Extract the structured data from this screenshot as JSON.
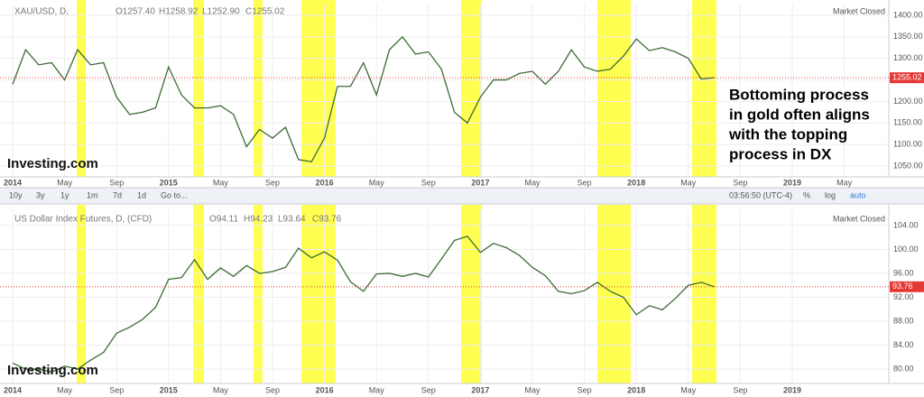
{
  "chart_data": [
    {
      "type": "line",
      "title": "XAU/USD, D,",
      "ohlc": [
        "O1257.40",
        "H1258.92",
        "L1252.90",
        "C1255.02"
      ],
      "status": "Market Closed",
      "logo": "Investing.com",
      "categories": [
        "2014",
        null,
        null,
        null,
        "May",
        null,
        null,
        null,
        "Sep",
        null,
        null,
        null,
        "2015",
        null,
        null,
        null,
        "May",
        null,
        null,
        null,
        "Sep",
        null,
        null,
        null,
        "2016",
        null,
        null,
        null,
        "May",
        null,
        null,
        null,
        "Sep",
        null,
        null,
        null,
        "2017",
        null,
        null,
        null,
        "May",
        null,
        null,
        null,
        "Sep",
        null,
        null,
        null,
        "2018",
        null,
        null,
        null,
        "May",
        null,
        null,
        null,
        "Sep",
        null,
        null,
        null,
        "2019",
        null,
        null,
        null,
        "May",
        null
      ],
      "series": [
        {
          "color": "#3d6b35",
          "values": [
            1240,
            1320,
            1285,
            1290,
            1250,
            1320,
            1285,
            1290,
            1210,
            1170,
            1175,
            1185,
            1280,
            1215,
            1185,
            1185,
            1190,
            1170,
            1095,
            1135,
            1115,
            1140,
            1065,
            1060,
            1115,
            1235,
            1235,
            1290,
            1215,
            1320,
            1350,
            1310,
            1315,
            1275,
            1175,
            1150,
            1210,
            1250,
            1250,
            1265,
            1270,
            1240,
            1270,
            1320,
            1280,
            1270,
            1275,
            1305,
            1345,
            1318,
            1325,
            1315,
            1300,
            1252,
            1255.02,
            null,
            null,
            null,
            null,
            null,
            null,
            null,
            null,
            null,
            null,
            null
          ]
        }
      ],
      "last_price": {
        "value": 1255.02,
        "label": "1255.02"
      },
      "ylim": [
        1025,
        1425
      ],
      "yticks": [
        {
          "value": 1050,
          "label": "1050.00"
        },
        {
          "value": 1100,
          "label": "1100.00"
        },
        {
          "value": 1150,
          "label": "1150.00"
        },
        {
          "value": 1200,
          "label": "1200.00"
        },
        {
          "value": 1250,
          "label": "1250.00"
        },
        {
          "value": 1300,
          "label": "1300.00"
        },
        {
          "value": 1350,
          "label": "1350.00"
        },
        {
          "value": 1400,
          "label": "1400.00"
        }
      ],
      "grid": true
    },
    {
      "type": "line",
      "title": "US Dollar Index Futures, D, (CFD)",
      "ohlc": [
        "O94.11",
        "H94.23",
        "L93.64",
        "C93.76"
      ],
      "status": "Market Closed",
      "logo": "Investing.com",
      "categories": [
        "2014",
        null,
        null,
        null,
        "May",
        null,
        null,
        null,
        "Sep",
        null,
        null,
        null,
        "2015",
        null,
        null,
        null,
        "May",
        null,
        null,
        null,
        "Sep",
        null,
        null,
        null,
        "2016",
        null,
        null,
        null,
        "May",
        null,
        null,
        null,
        "Sep",
        null,
        null,
        null,
        "2017",
        null,
        null,
        null,
        "May",
        null,
        null,
        null,
        "Sep",
        null,
        null,
        null,
        "2018",
        null,
        null,
        null,
        "May",
        null,
        null,
        null,
        "Sep",
        null,
        null,
        null,
        "2019"
      ],
      "series": [
        {
          "color": "#3d6b35",
          "values": [
            81,
            80,
            80,
            79.5,
            80.5,
            80,
            81.5,
            82.8,
            86,
            87,
            88.3,
            90.3,
            95,
            95.3,
            98.3,
            95,
            96.9,
            95.5,
            97.3,
            96,
            96.3,
            97,
            100.2,
            98.6,
            99.6,
            98.2,
            94.6,
            93,
            95.9,
            96,
            95.5,
            96,
            95.4,
            98.4,
            101.5,
            102.2,
            99.5,
            101,
            100.3,
            99,
            97,
            95.6,
            93,
            92.6,
            93.1,
            94.5,
            93,
            92,
            89.1,
            90.6,
            89.9,
            91.8,
            94,
            94.5,
            93.76,
            null,
            null,
            null,
            null,
            null,
            null
          ]
        }
      ],
      "last_price": {
        "value": 93.76,
        "label": "93.76"
      },
      "ylim": [
        77.6,
        106.7
      ],
      "yticks": [
        {
          "value": 80,
          "label": "80.00"
        },
        {
          "value": 84,
          "label": "84.00"
        },
        {
          "value": 88,
          "label": "88.00"
        },
        {
          "value": 92,
          "label": "92.00"
        },
        {
          "value": 96,
          "label": "96.00"
        },
        {
          "value": 100,
          "label": "100.00"
        },
        {
          "value": 104,
          "label": "104.00"
        }
      ],
      "grid": true
    }
  ],
  "toolbar": {
    "ranges": [
      "10y",
      "3y",
      "1y",
      "1m",
      "7d",
      "1d",
      "Go to..."
    ],
    "time": "03:56:50 (UTC-4)",
    "options": [
      "%",
      "log",
      "auto"
    ]
  },
  "annotation": [
    "Bottoming process",
    "in gold often aligns",
    "with the topping",
    "process in DX"
  ]
}
